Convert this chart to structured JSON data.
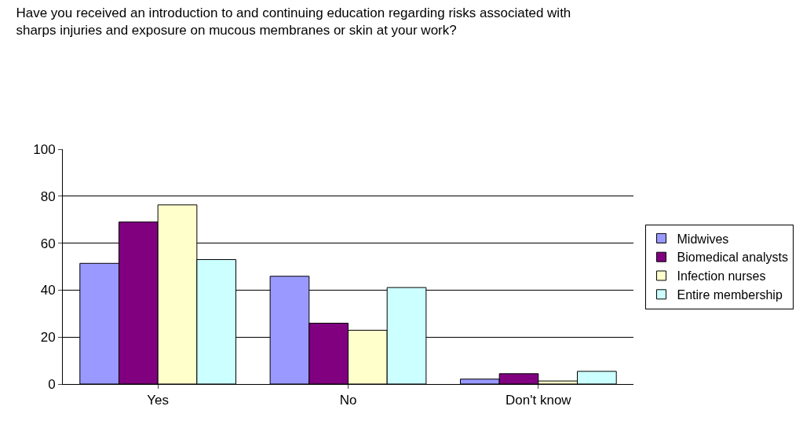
{
  "chart_data": {
    "type": "bar",
    "title": "Have you received an introduction to and continuing education regarding risks associated with sharps injuries and exposure on mucous membranes or skin at your work?",
    "categories": [
      "Yes",
      "No",
      "Don't know"
    ],
    "series": [
      {
        "name": "Midwives",
        "color": "#9999ff",
        "values": [
          51.4,
          45.9,
          2.1
        ]
      },
      {
        "name": "Biomedical analysts",
        "color": "#800080",
        "values": [
          69,
          25.9,
          4.4
        ]
      },
      {
        "name": "Infection nurses",
        "color": "#ffffcc",
        "values": [
          76.3,
          22.9,
          1.3
        ]
      },
      {
        "name": "Entire membership",
        "color": "#ccffff",
        "values": [
          53,
          41.1,
          5.4
        ]
      }
    ],
    "ylim": [
      0,
      100
    ],
    "yticks": [
      0,
      20,
      40,
      60,
      80,
      100
    ],
    "grid": "y",
    "legend": "right"
  }
}
